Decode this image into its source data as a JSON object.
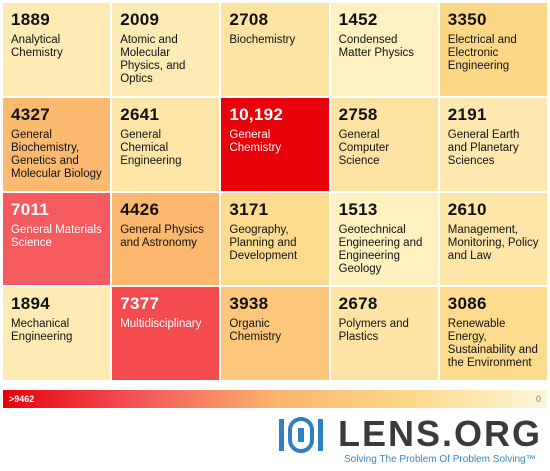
{
  "chart_data": {
    "type": "heatmap",
    "title": "",
    "cells": [
      {
        "value": "1889",
        "label": "Analytical Chemistry",
        "color": "#fdebb3",
        "text_color": "#111111"
      },
      {
        "value": "2009",
        "label": "Atomic and Molecular Physics, and Optics",
        "color": "#fdebb6",
        "text_color": "#111111"
      },
      {
        "value": "2708",
        "label": "Biochemistry",
        "color": "#fde4a3",
        "text_color": "#111111"
      },
      {
        "value": "1452",
        "label": "Condensed Matter Physics",
        "color": "#fef0c0",
        "text_color": "#111111"
      },
      {
        "value": "3350",
        "label": "Electrical and Electronic Engineering",
        "color": "#fcd886",
        "text_color": "#111111"
      },
      {
        "value": "4327",
        "label": "General Biochemistry, Genetics and Molecular Biology",
        "color": "#fbba70",
        "text_color": "#111111"
      },
      {
        "value": "2641",
        "label": "General Chemical Engineering",
        "color": "#fde6a8",
        "text_color": "#111111"
      },
      {
        "value": "10,192",
        "label": "General Chemistry",
        "color": "#e8000a",
        "text_color": "#ffffff"
      },
      {
        "value": "2758",
        "label": "General Computer Science",
        "color": "#fde3a2",
        "text_color": "#111111"
      },
      {
        "value": "2191",
        "label": "General Earth and Planetary Sciences",
        "color": "#fde9b0",
        "text_color": "#111111"
      },
      {
        "value": "7011",
        "label": "General Materials Science",
        "color": "#f45a5e",
        "text_color": "#ffffff"
      },
      {
        "value": "4426",
        "label": "General Physics and Astronomy",
        "color": "#fbb86e",
        "text_color": "#111111"
      },
      {
        "value": "3171",
        "label": "Geography, Planning and Development",
        "color": "#fcdb8e",
        "text_color": "#111111"
      },
      {
        "value": "1513",
        "label": "Geotechnical Engineering and Engineering Geology",
        "color": "#fef0bf",
        "text_color": "#111111"
      },
      {
        "value": "2610",
        "label": "Management, Monitoring, Policy and Law",
        "color": "#fde6a8",
        "text_color": "#111111"
      },
      {
        "value": "1894",
        "label": "Mechanical Engineering",
        "color": "#fdebb3",
        "text_color": "#111111"
      },
      {
        "value": "7377",
        "label": "Multidisciplinary",
        "color": "#f44b4f",
        "text_color": "#ffffff"
      },
      {
        "value": "3938",
        "label": "Organic Chemistry",
        "color": "#fcc77a",
        "text_color": "#111111"
      },
      {
        "value": "2678",
        "label": "Polymers and Plastics",
        "color": "#fde4a5",
        "text_color": "#111111"
      },
      {
        "value": "3086",
        "label": "Renewable Energy, Sustainability and the Environment",
        "color": "#fcdb8e",
        "text_color": "#111111"
      }
    ],
    "legend": {
      "min_label": ">9462",
      "max_label": "0",
      "colors": [
        "#e8000a",
        "#f4555a",
        "#fbb46c",
        "#fcd98a",
        "#fef6da"
      ]
    }
  },
  "logo": {
    "text": "LENS.ORG",
    "tagline": "Solving The Problem Of Problem Solving™"
  }
}
